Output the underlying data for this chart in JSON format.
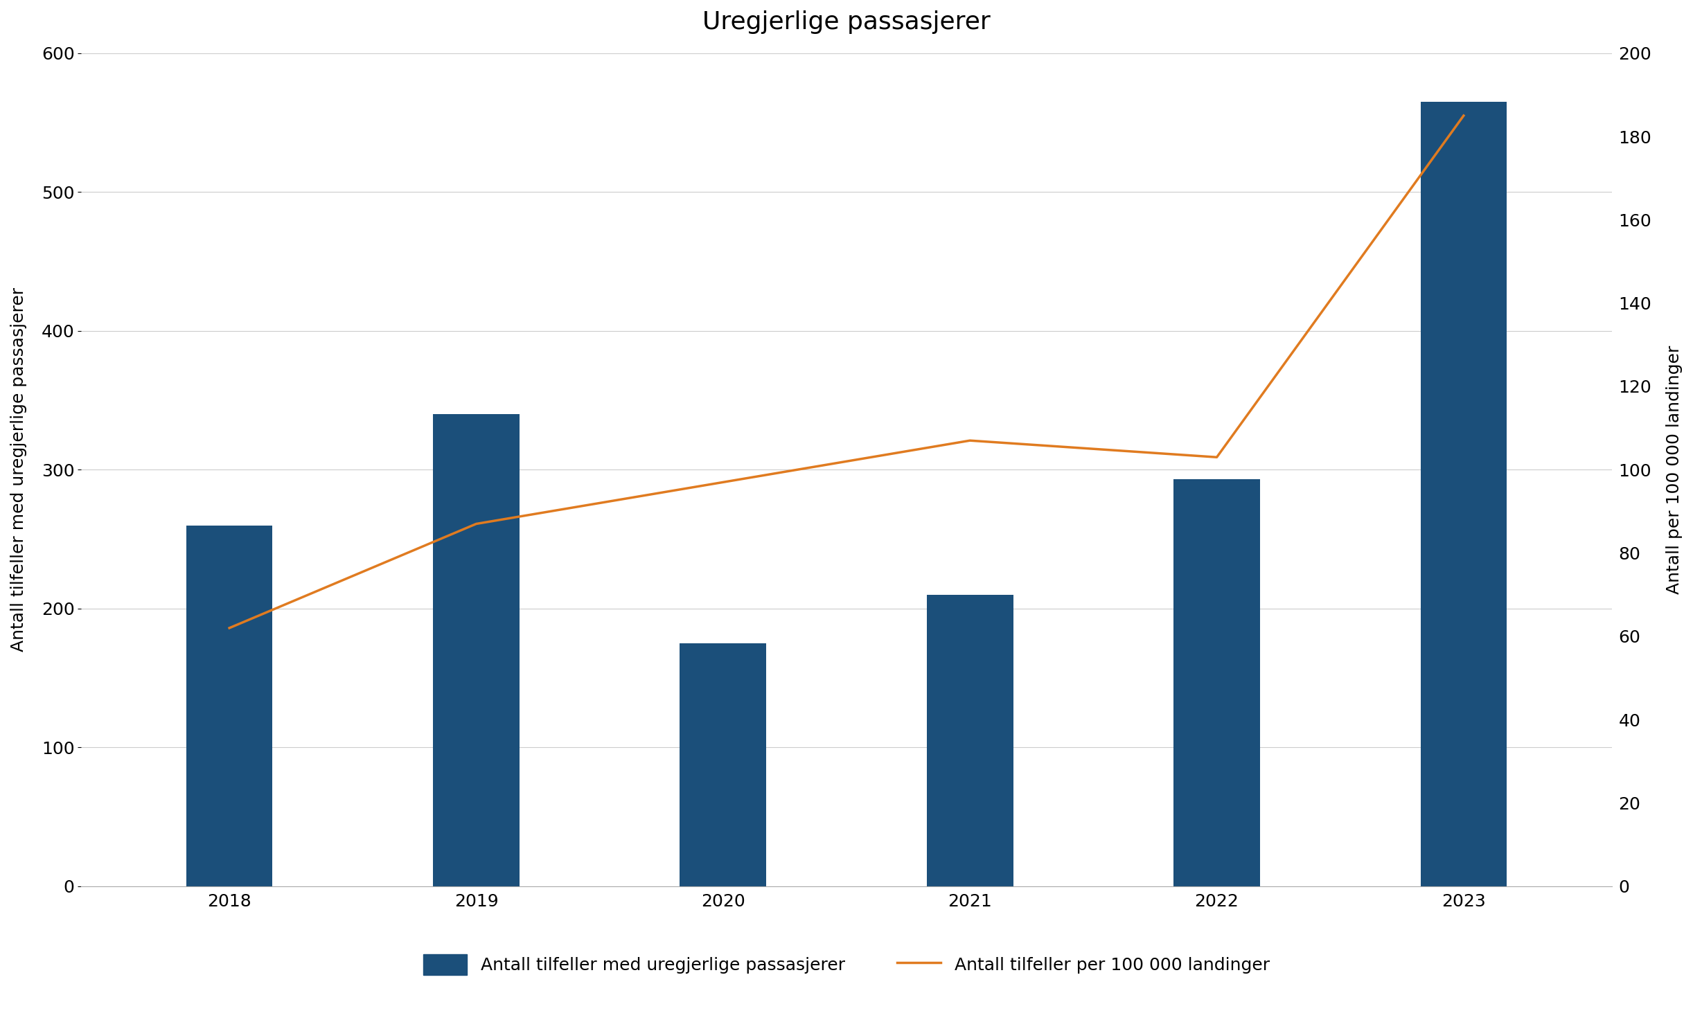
{
  "title": "Uregjerlige passasjerer",
  "years": [
    "2018",
    "2019",
    "2020",
    "2021",
    "2022",
    "2023"
  ],
  "bar_values": [
    260,
    340,
    175,
    210,
    293,
    565
  ],
  "line_values": [
    62,
    87,
    97,
    107,
    103,
    185
  ],
  "bar_color": "#1B4F7A",
  "line_color": "#E07B20",
  "ylabel_left": "Antall tilfeller med uregjerlige passasjerer",
  "ylabel_right": "Antall per 100 000 landinger",
  "ylim_left": [
    0,
    600
  ],
  "ylim_right": [
    0,
    200
  ],
  "yticks_left": [
    0,
    100,
    200,
    300,
    400,
    500,
    600
  ],
  "yticks_right": [
    0,
    20,
    40,
    60,
    80,
    100,
    120,
    140,
    160,
    180,
    200
  ],
  "legend_bar_label": "Antall tilfeller med uregjerlige passasjerer",
  "legend_line_label": "Antall tilfeller per 100 000 landinger",
  "background_color": "#FFFFFF",
  "title_fontsize": 26,
  "axis_label_fontsize": 18,
  "tick_fontsize": 18,
  "legend_fontsize": 18,
  "bar_width": 0.35,
  "line_width": 2.5,
  "grid_color": "#CCCCCC",
  "grid_linewidth": 0.8
}
